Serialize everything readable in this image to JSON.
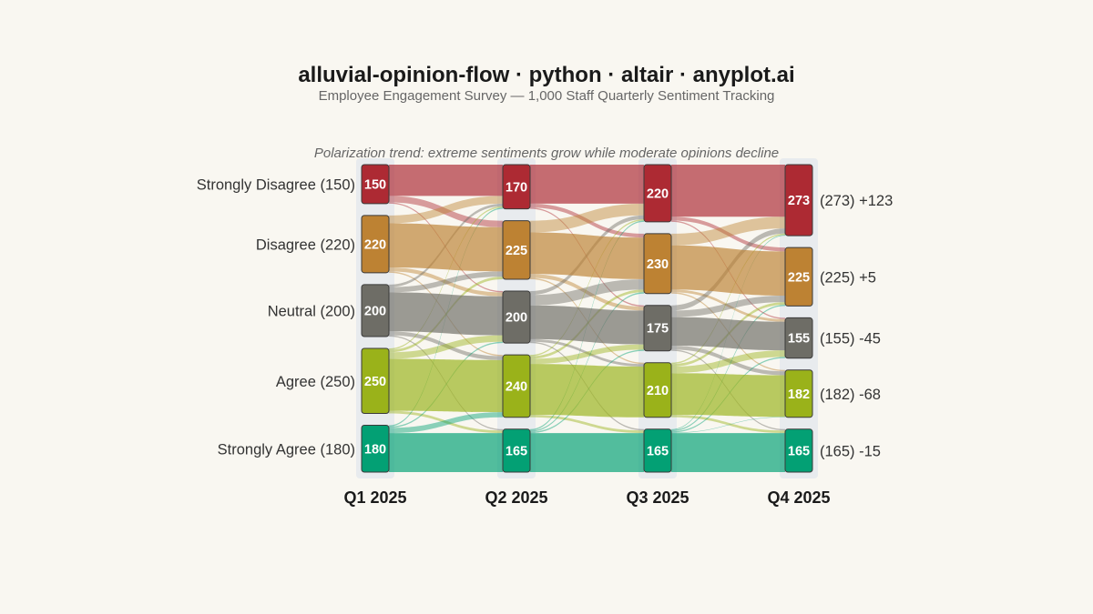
{
  "chart_data": {
    "type": "alluvial",
    "title": "alluvial-opinion-flow · python · altair · anyplot.ai",
    "subtitle": "Employee Engagement Survey — 1,000 Staff Quarterly Sentiment Tracking",
    "annotation": "Polarization trend: extreme sentiments grow while moderate opinions decline",
    "stages": [
      "Q1 2025",
      "Q2 2025",
      "Q3 2025",
      "Q4 2025"
    ],
    "categories": [
      {
        "name": "Strongly Disagree",
        "color": "#ad2a33"
      },
      {
        "name": "Disagree",
        "color": "#bd8233"
      },
      {
        "name": "Neutral",
        "color": "#6e6d66"
      },
      {
        "name": "Agree",
        "color": "#9ab21a"
      },
      {
        "name": "Strongly Agree",
        "color": "#03a074"
      }
    ],
    "values": [
      [
        150,
        220,
        200,
        250,
        180
      ],
      [
        170,
        225,
        200,
        240,
        165
      ],
      [
        220,
        230,
        175,
        210,
        165
      ],
      [
        273,
        225,
        155,
        182,
        165
      ]
    ],
    "left_labels": [
      "Strongly Disagree (150)",
      "Disagree (220)",
      "Neutral (200)",
      "Agree (250)",
      "Strongly Agree (180)"
    ],
    "right_labels": [
      "(273) +123",
      "(225) +5",
      "(155) -45",
      "(182) -68",
      "(165) -15"
    ],
    "flows": [
      [
        [
          120,
          25,
          5,
          0,
          0
        ],
        [
          30,
          170,
          15,
          5,
          0
        ],
        [
          10,
          20,
          150,
          15,
          5
        ],
        [
          5,
          10,
          25,
          200,
          10
        ],
        [
          5,
          0,
          5,
          20,
          150
        ]
      ],
      [
        [
          150,
          15,
          5,
          0,
          0
        ],
        [
          45,
          160,
          15,
          5,
          0
        ],
        [
          15,
          40,
          130,
          10,
          5
        ],
        [
          5,
          10,
          20,
          195,
          10
        ],
        [
          5,
          5,
          5,
          0,
          150
        ]
      ],
      [
        [
          200,
          15,
          5,
          0,
          0
        ],
        [
          45,
          170,
          10,
          5,
          0
        ],
        [
          20,
          25,
          110,
          15,
          5
        ],
        [
          5,
          10,
          25,
          160,
          10
        ],
        [
          3,
          5,
          5,
          2,
          150
        ]
      ]
    ]
  }
}
